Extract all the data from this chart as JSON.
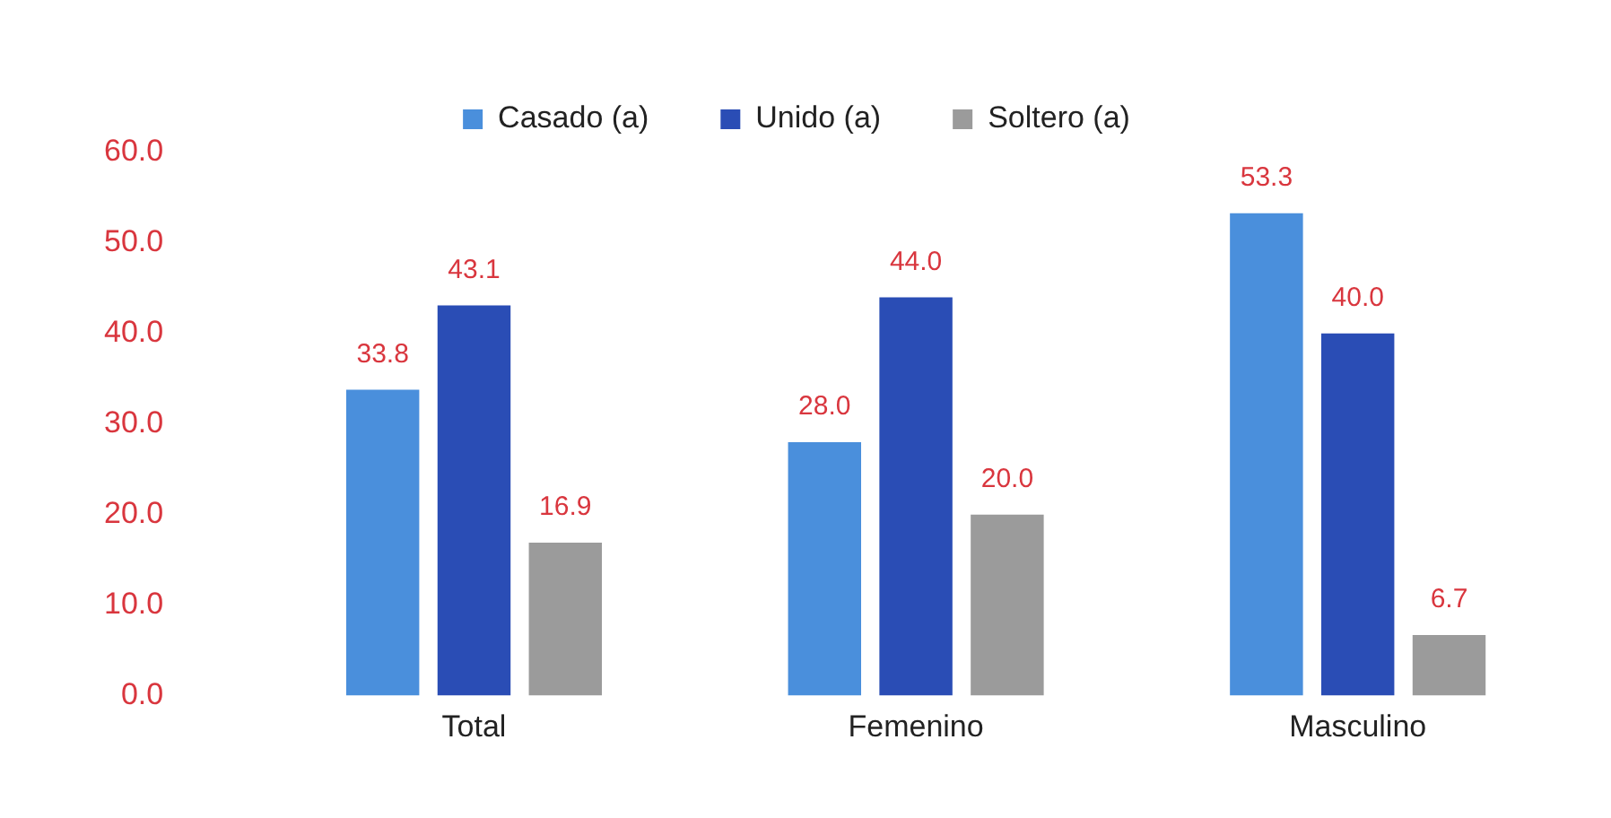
{
  "chart_data": {
    "type": "bar",
    "categories": [
      "Total",
      "Femenino",
      "Masculino"
    ],
    "series": [
      {
        "name": "Casado (a)",
        "color": "#4a8fdc",
        "values": [
          33.8,
          28.0,
          53.3
        ],
        "value_labels": [
          "33.8",
          "28.0",
          "53.3"
        ]
      },
      {
        "name": "Unido (a)",
        "color": "#2a4db5",
        "values": [
          43.1,
          44.0,
          40.0
        ],
        "value_labels": [
          "43.1",
          "44.0",
          "40.0"
        ]
      },
      {
        "name": "Soltero (a)",
        "color": "#9b9b9b",
        "values": [
          16.9,
          20.0,
          6.7
        ],
        "value_labels": [
          "16.9",
          "20.0",
          "6.7"
        ]
      }
    ],
    "ylim": [
      0,
      60
    ],
    "yticks": [
      {
        "value": 0,
        "label": "0.0"
      },
      {
        "value": 10,
        "label": "10.0"
      },
      {
        "value": 20,
        "label": "20.0"
      },
      {
        "value": 30,
        "label": "30.0"
      },
      {
        "value": 40,
        "label": "40.0"
      },
      {
        "value": 50,
        "label": "50.0"
      },
      {
        "value": 60,
        "label": "60.0"
      }
    ],
    "grid": false,
    "legend": "top"
  }
}
